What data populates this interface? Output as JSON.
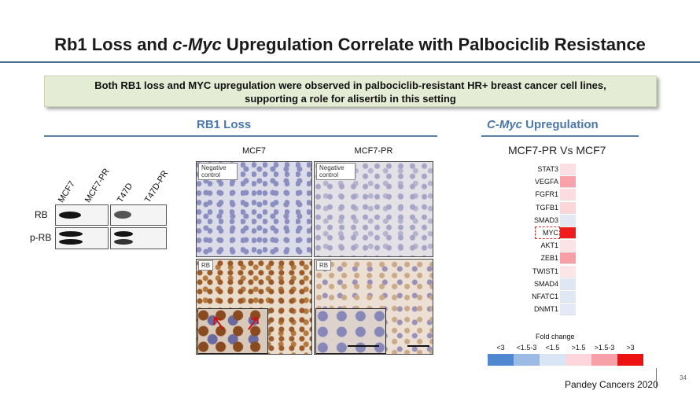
{
  "title": {
    "part1": "Rb1 Loss and ",
    "italic": "c-Myc",
    "part2": " Upregulation Correlate with Palbociclib Resistance"
  },
  "callout": {
    "line1": "Both RB1 loss and MYC upregulation were observed in palbociclib-resistant HR+ breast cancer cell lines,",
    "line2": "supporting a role for alisertib in this setting"
  },
  "rb1_section": {
    "title": "RB1 Loss",
    "western_blot": {
      "lanes": [
        "MCF7",
        "MCF7-PR",
        "T47D",
        "T47D-PR"
      ],
      "rows": [
        "RB",
        "p-RB"
      ]
    },
    "ihc": {
      "columns": [
        "MCF7",
        "MCF7-PR"
      ],
      "tags": {
        "negative": "Negative control",
        "rb": "RB"
      }
    }
  },
  "myc_section": {
    "title_italic": "C-Myc",
    "title_rest": " Upregulation",
    "heatmap_title": "MCF7-PR Vs MCF7",
    "genes": [
      "STAT3",
      "VEGFA",
      "FGFR1",
      "TGFB1",
      "SMAD3",
      "MYC",
      "AKT1",
      "ZEB1",
      "TWIST1",
      "SMAD4",
      "NFATC1",
      "DNMT1"
    ],
    "gene_colors": [
      "#fbdfe2",
      "#f8a3ab",
      "#fbdde0",
      "#fbd7da",
      "#e2e9f4",
      "#ee1c1c",
      "#fce4e6",
      "#f79ea6",
      "#fce5e7",
      "#dfe7f3",
      "#e0e8f4",
      "#e3eaf5"
    ],
    "highlight": "MYC",
    "legend_title": "Fold change",
    "legend_labels": [
      "<3",
      "<1.5-3",
      "<1.5",
      ">1.5",
      ">1.5-3",
      ">3"
    ],
    "legend_colors": [
      "#4f88cf",
      "#9bbbe6",
      "#d9e5f4",
      "#fcd6da",
      "#f8a0a8",
      "#ee1111"
    ]
  },
  "footer": {
    "citation": "Pandey Cancers 2020",
    "page": "34"
  }
}
